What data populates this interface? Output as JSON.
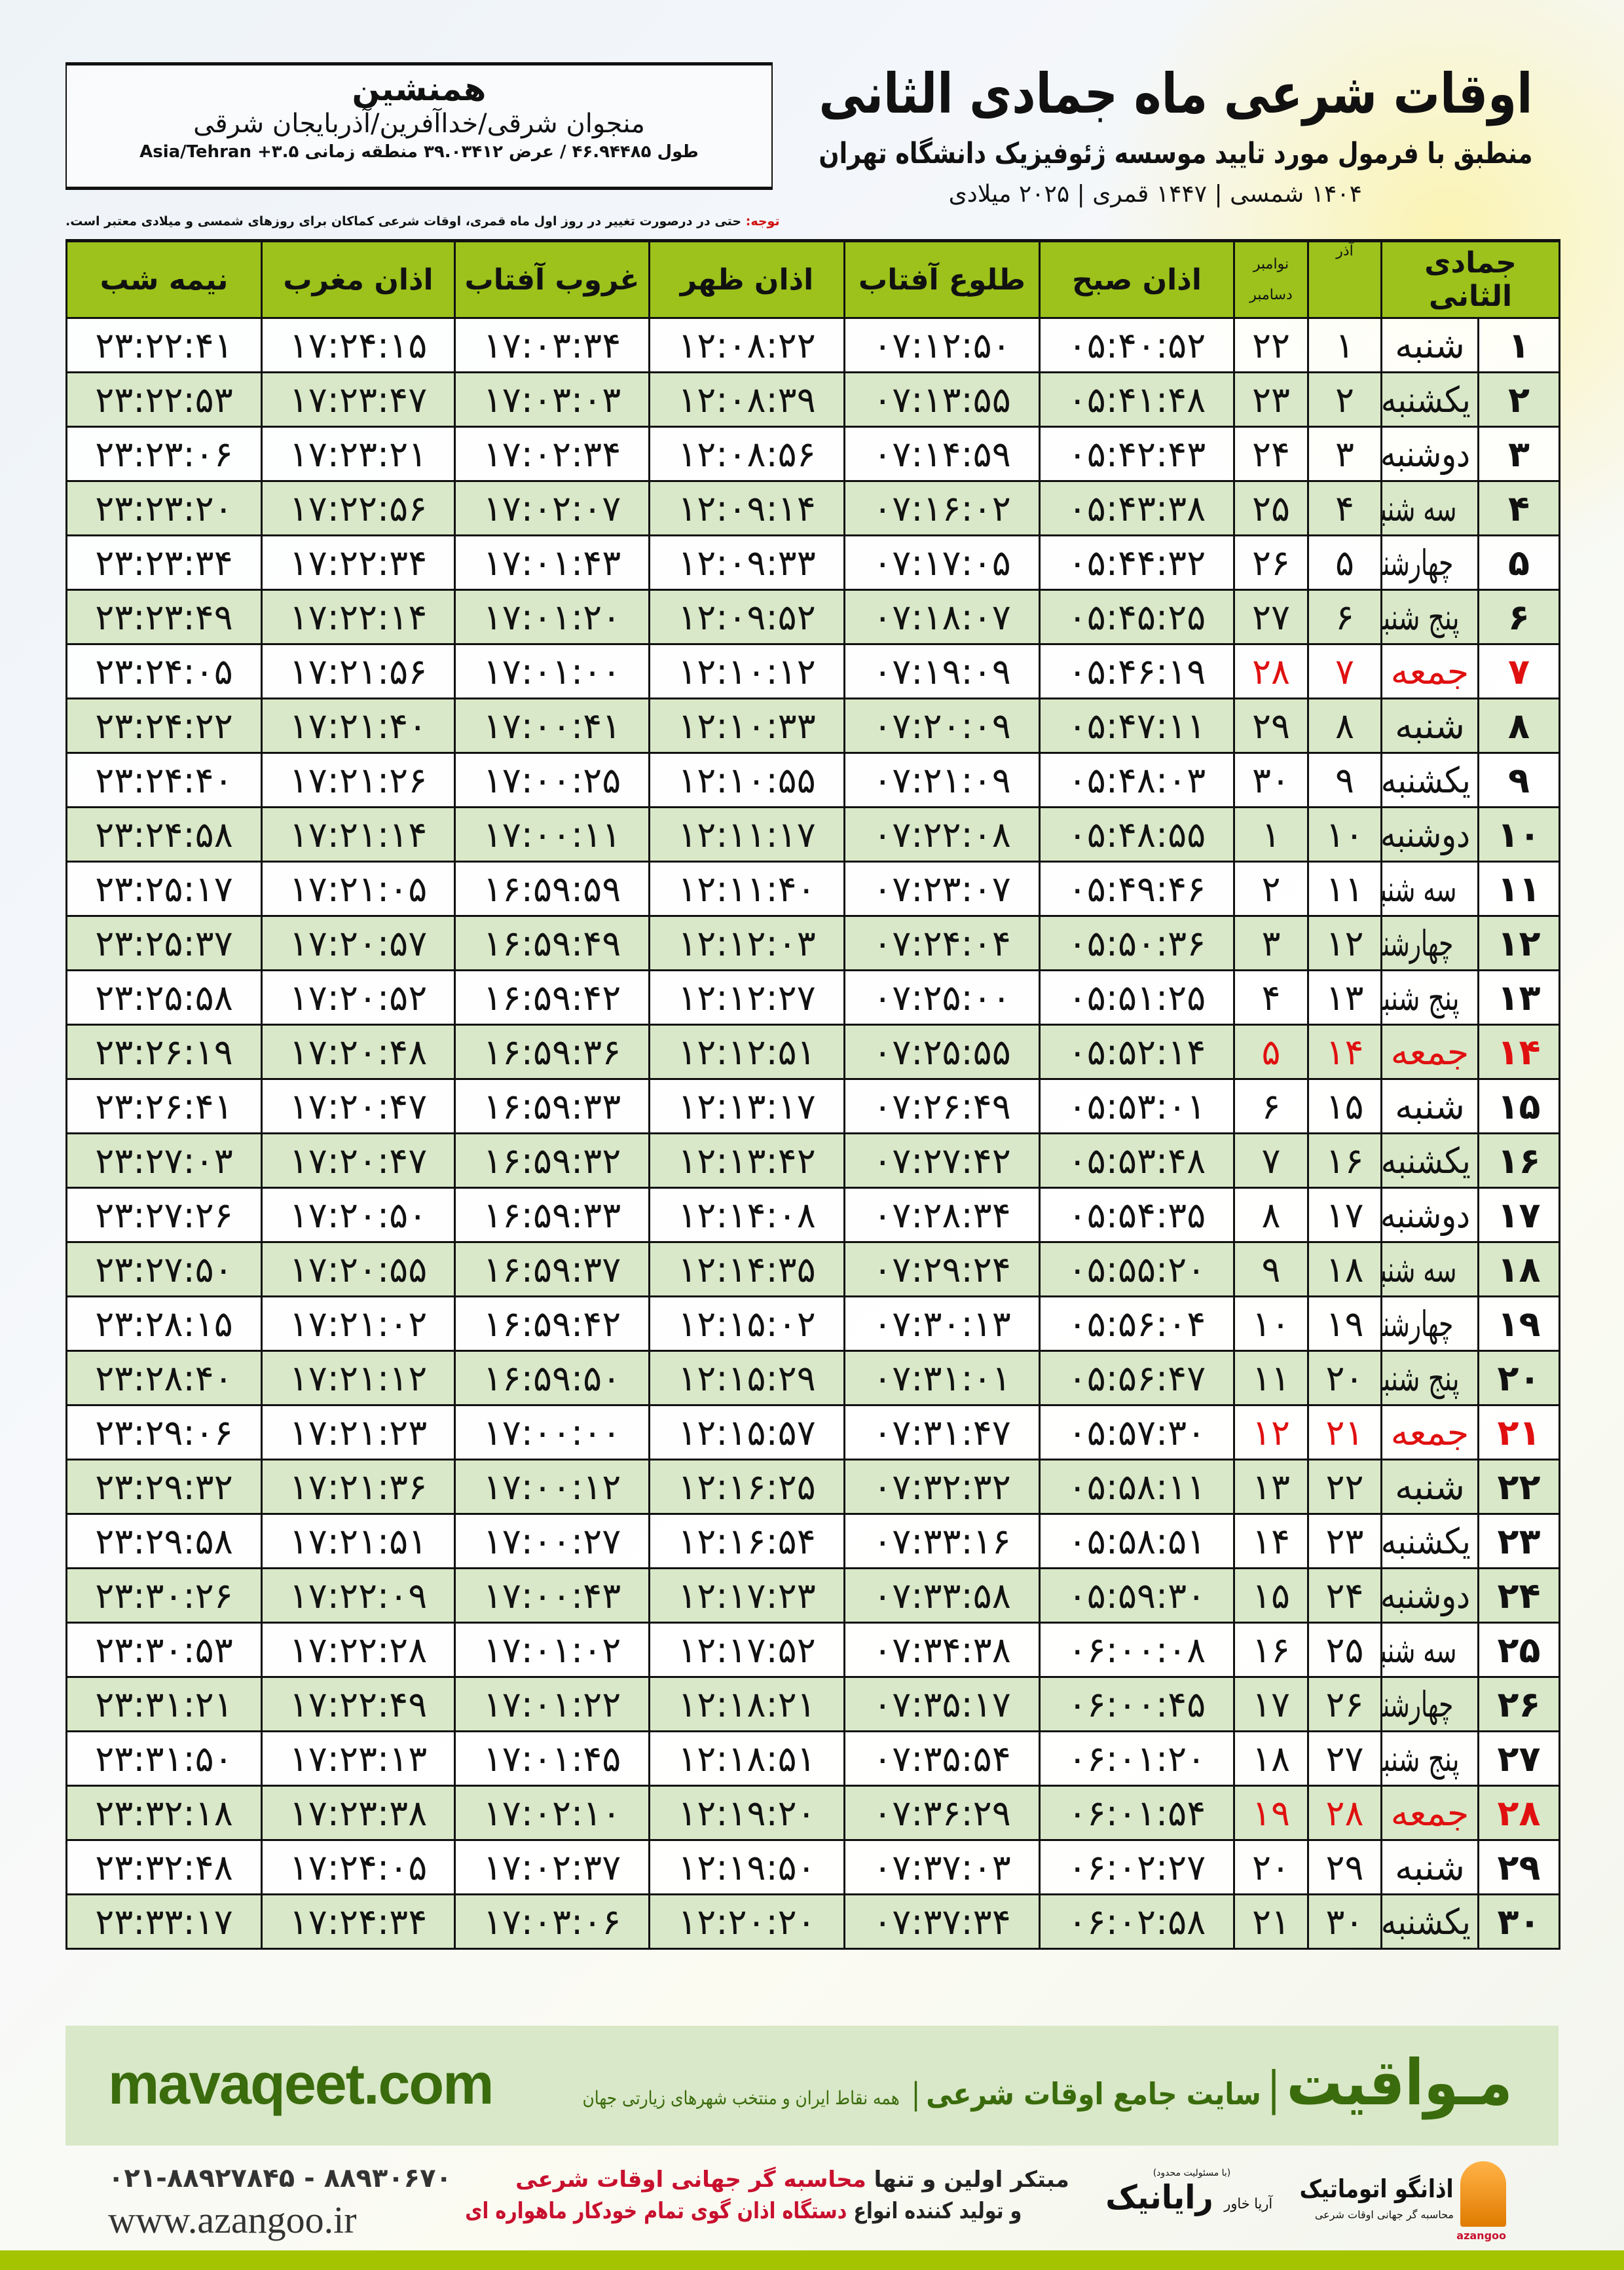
{
  "header": {
    "title": "اوقات شرعی ماه جمادی الثانی",
    "subtitle": "منطبق با فرمول مورد تایید موسسه ژئوفیزیک دانشگاه تهران",
    "years": "۱۴۰۴ شمسی | ۱۴۴۷ قمری | ۲۰۲۵ میلادی"
  },
  "location": {
    "city": "همنشین",
    "region": "منجوان شرقی/خداآفرین/آذربایجان شرقی",
    "coords": "طول ۴۶.۹۴۴۸۵ / عرض ۳۹.۰۳۴۱۲ منطقه زمانی ۳.۵+ Asia/Tehran"
  },
  "note": {
    "label": "توجه:",
    "text": "حتی در درصورت تغییر در روز اول ماه قمری، اوقات شرعی کماکان برای روزهای شمسی و میلادی معتبر است."
  },
  "table": {
    "headers": {
      "hijri": "جمادی الثانی",
      "solar": "آذر",
      "gregorian_top": "نوامبر",
      "gregorian_bottom": "دسامبر",
      "fajr": "اذان صبح",
      "sunrise": "طلوع آفتاب",
      "dhuhr": "اذان ظهر",
      "sunset": "غروب آفتاب",
      "maghrib": "اذان مغرب",
      "midnight": "نیمه شب"
    },
    "friday_color": "#e01010",
    "header_color": "#9cc21b",
    "alt_row_color": "#d9e8c8",
    "rows": [
      [
        "۱",
        "شنبه",
        "۱",
        "۲۲",
        "۰۵:۴۰:۵۲",
        "۰۷:۱۲:۵۰",
        "۱۲:۰۸:۲۲",
        "۱۷:۰۳:۳۴",
        "۱۷:۲۴:۱۵",
        "۲۳:۲۲:۴۱",
        false
      ],
      [
        "۲",
        "یکشنبه",
        "۲",
        "۲۳",
        "۰۵:۴۱:۴۸",
        "۰۷:۱۳:۵۵",
        "۱۲:۰۸:۳۹",
        "۱۷:۰۳:۰۳",
        "۱۷:۲۳:۴۷",
        "۲۳:۲۲:۵۳",
        false
      ],
      [
        "۳",
        "دوشنبه",
        "۳",
        "۲۴",
        "۰۵:۴۲:۴۳",
        "۰۷:۱۴:۵۹",
        "۱۲:۰۸:۵۶",
        "۱۷:۰۲:۳۴",
        "۱۷:۲۳:۲۱",
        "۲۳:۲۳:۰۶",
        false
      ],
      [
        "۴",
        "سه شنبه",
        "۴",
        "۲۵",
        "۰۵:۴۳:۳۸",
        "۰۷:۱۶:۰۲",
        "۱۲:۰۹:۱۴",
        "۱۷:۰۲:۰۷",
        "۱۷:۲۲:۵۶",
        "۲۳:۲۳:۲۰",
        false
      ],
      [
        "۵",
        "چهارشنبه",
        "۵",
        "۲۶",
        "۰۵:۴۴:۳۲",
        "۰۷:۱۷:۰۵",
        "۱۲:۰۹:۳۳",
        "۱۷:۰۱:۴۳",
        "۱۷:۲۲:۳۴",
        "۲۳:۲۳:۳۴",
        false
      ],
      [
        "۶",
        "پنج شنبه",
        "۶",
        "۲۷",
        "۰۵:۴۵:۲۵",
        "۰۷:۱۸:۰۷",
        "۱۲:۰۹:۵۲",
        "۱۷:۰۱:۲۰",
        "۱۷:۲۲:۱۴",
        "۲۳:۲۳:۴۹",
        false
      ],
      [
        "۷",
        "جمعه",
        "۷",
        "۲۸",
        "۰۵:۴۶:۱۹",
        "۰۷:۱۹:۰۹",
        "۱۲:۱۰:۱۲",
        "۱۷:۰۱:۰۰",
        "۱۷:۲۱:۵۶",
        "۲۳:۲۴:۰۵",
        true
      ],
      [
        "۸",
        "شنبه",
        "۸",
        "۲۹",
        "۰۵:۴۷:۱۱",
        "۰۷:۲۰:۰۹",
        "۱۲:۱۰:۳۳",
        "۱۷:۰۰:۴۱",
        "۱۷:۲۱:۴۰",
        "۲۳:۲۴:۲۲",
        false
      ],
      [
        "۹",
        "یکشنبه",
        "۹",
        "۳۰",
        "۰۵:۴۸:۰۳",
        "۰۷:۲۱:۰۹",
        "۱۲:۱۰:۵۵",
        "۱۷:۰۰:۲۵",
        "۱۷:۲۱:۲۶",
        "۲۳:۲۴:۴۰",
        false
      ],
      [
        "۱۰",
        "دوشنبه",
        "۱۰",
        "۱",
        "۰۵:۴۸:۵۵",
        "۰۷:۲۲:۰۸",
        "۱۲:۱۱:۱۷",
        "۱۷:۰۰:۱۱",
        "۱۷:۲۱:۱۴",
        "۲۳:۲۴:۵۸",
        false
      ],
      [
        "۱۱",
        "سه شنبه",
        "۱۱",
        "۲",
        "۰۵:۴۹:۴۶",
        "۰۷:۲۳:۰۷",
        "۱۲:۱۱:۴۰",
        "۱۶:۵۹:۵۹",
        "۱۷:۲۱:۰۵",
        "۲۳:۲۵:۱۷",
        false
      ],
      [
        "۱۲",
        "چهارشنبه",
        "۱۲",
        "۳",
        "۰۵:۵۰:۳۶",
        "۰۷:۲۴:۰۴",
        "۱۲:۱۲:۰۳",
        "۱۶:۵۹:۴۹",
        "۱۷:۲۰:۵۷",
        "۲۳:۲۵:۳۷",
        false
      ],
      [
        "۱۳",
        "پنج شنبه",
        "۱۳",
        "۴",
        "۰۵:۵۱:۲۵",
        "۰۷:۲۵:۰۰",
        "۱۲:۱۲:۲۷",
        "۱۶:۵۹:۴۲",
        "۱۷:۲۰:۵۲",
        "۲۳:۲۵:۵۸",
        false
      ],
      [
        "۱۴",
        "جمعه",
        "۱۴",
        "۵",
        "۰۵:۵۲:۱۴",
        "۰۷:۲۵:۵۵",
        "۱۲:۱۲:۵۱",
        "۱۶:۵۹:۳۶",
        "۱۷:۲۰:۴۸",
        "۲۳:۲۶:۱۹",
        true
      ],
      [
        "۱۵",
        "شنبه",
        "۱۵",
        "۶",
        "۰۵:۵۳:۰۱",
        "۰۷:۲۶:۴۹",
        "۱۲:۱۳:۱۷",
        "۱۶:۵۹:۳۳",
        "۱۷:۲۰:۴۷",
        "۲۳:۲۶:۴۱",
        false
      ],
      [
        "۱۶",
        "یکشنبه",
        "۱۶",
        "۷",
        "۰۵:۵۳:۴۸",
        "۰۷:۲۷:۴۲",
        "۱۲:۱۳:۴۲",
        "۱۶:۵۹:۳۲",
        "۱۷:۲۰:۴۷",
        "۲۳:۲۷:۰۳",
        false
      ],
      [
        "۱۷",
        "دوشنبه",
        "۱۷",
        "۸",
        "۰۵:۵۴:۳۵",
        "۰۷:۲۸:۳۴",
        "۱۲:۱۴:۰۸",
        "۱۶:۵۹:۳۳",
        "۱۷:۲۰:۵۰",
        "۲۳:۲۷:۲۶",
        false
      ],
      [
        "۱۸",
        "سه شنبه",
        "۱۸",
        "۹",
        "۰۵:۵۵:۲۰",
        "۰۷:۲۹:۲۴",
        "۱۲:۱۴:۳۵",
        "۱۶:۵۹:۳۷",
        "۱۷:۲۰:۵۵",
        "۲۳:۲۷:۵۰",
        false
      ],
      [
        "۱۹",
        "چهارشنبه",
        "۱۹",
        "۱۰",
        "۰۵:۵۶:۰۴",
        "۰۷:۳۰:۱۳",
        "۱۲:۱۵:۰۲",
        "۱۶:۵۹:۴۲",
        "۱۷:۲۱:۰۲",
        "۲۳:۲۸:۱۵",
        false
      ],
      [
        "۲۰",
        "پنج شنبه",
        "۲۰",
        "۱۱",
        "۰۵:۵۶:۴۷",
        "۰۷:۳۱:۰۱",
        "۱۲:۱۵:۲۹",
        "۱۶:۵۹:۵۰",
        "۱۷:۲۱:۱۲",
        "۲۳:۲۸:۴۰",
        false
      ],
      [
        "۲۱",
        "جمعه",
        "۲۱",
        "۱۲",
        "۰۵:۵۷:۳۰",
        "۰۷:۳۱:۴۷",
        "۱۲:۱۵:۵۷",
        "۱۷:۰۰:۰۰",
        "۱۷:۲۱:۲۳",
        "۲۳:۲۹:۰۶",
        true
      ],
      [
        "۲۲",
        "شنبه",
        "۲۲",
        "۱۳",
        "۰۵:۵۸:۱۱",
        "۰۷:۳۲:۳۲",
        "۱۲:۱۶:۲۵",
        "۱۷:۰۰:۱۲",
        "۱۷:۲۱:۳۶",
        "۲۳:۲۹:۳۲",
        false
      ],
      [
        "۲۳",
        "یکشنبه",
        "۲۳",
        "۱۴",
        "۰۵:۵۸:۵۱",
        "۰۷:۳۳:۱۶",
        "۱۲:۱۶:۵۴",
        "۱۷:۰۰:۲۷",
        "۱۷:۲۱:۵۱",
        "۲۳:۲۹:۵۸",
        false
      ],
      [
        "۲۴",
        "دوشنبه",
        "۲۴",
        "۱۵",
        "۰۵:۵۹:۳۰",
        "۰۷:۳۳:۵۸",
        "۱۲:۱۷:۲۳",
        "۱۷:۰۰:۴۳",
        "۱۷:۲۲:۰۹",
        "۲۳:۳۰:۲۶",
        false
      ],
      [
        "۲۵",
        "سه شنبه",
        "۲۵",
        "۱۶",
        "۰۶:۰۰:۰۸",
        "۰۷:۳۴:۳۸",
        "۱۲:۱۷:۵۲",
        "۱۷:۰۱:۰۲",
        "۱۷:۲۲:۲۸",
        "۲۳:۳۰:۵۳",
        false
      ],
      [
        "۲۶",
        "چهارشنبه",
        "۲۶",
        "۱۷",
        "۰۶:۰۰:۴۵",
        "۰۷:۳۵:۱۷",
        "۱۲:۱۸:۲۱",
        "۱۷:۰۱:۲۲",
        "۱۷:۲۲:۴۹",
        "۲۳:۳۱:۲۱",
        false
      ],
      [
        "۲۷",
        "پنج شنبه",
        "۲۷",
        "۱۸",
        "۰۶:۰۱:۲۰",
        "۰۷:۳۵:۵۴",
        "۱۲:۱۸:۵۱",
        "۱۷:۰۱:۴۵",
        "۱۷:۲۳:۱۳",
        "۲۳:۳۱:۵۰",
        false
      ],
      [
        "۲۸",
        "جمعه",
        "۲۸",
        "۱۹",
        "۰۶:۰۱:۵۴",
        "۰۷:۳۶:۲۹",
        "۱۲:۱۹:۲۰",
        "۱۷:۰۲:۱۰",
        "۱۷:۲۳:۳۸",
        "۲۳:۳۲:۱۸",
        true
      ],
      [
        "۲۹",
        "شنبه",
        "۲۹",
        "۲۰",
        "۰۶:۰۲:۲۷",
        "۰۷:۳۷:۰۳",
        "۱۲:۱۹:۵۰",
        "۱۷:۰۲:۳۷",
        "۱۷:۲۴:۰۵",
        "۲۳:۳۲:۴۸",
        false
      ],
      [
        "۳۰",
        "یکشنبه",
        "۳۰",
        "۲۱",
        "۰۶:۰۲:۵۸",
        "۰۷:۳۷:۳۴",
        "۱۲:۲۰:۲۰",
        "۱۷:۰۳:۰۶",
        "۱۷:۲۴:۳۴",
        "۲۳:۳۳:۱۷",
        false
      ]
    ]
  },
  "footer": {
    "site": "mavaqeet.com",
    "brand": "مـواقیت",
    "brand_sep": "|",
    "brand_tagline": "سایت جامع اوقات شرعی",
    "brand_sub": "همه نقاط ایران و منتخب شهرهای زیارتی جهان",
    "phones": "۰۲۱-۸۸۹۲۷۸۴۵ - ۸۸۹۳۰۶۷۰",
    "website": "www.azangoo.ir",
    "slogan_1a": "مبتکر اولین و تنها ",
    "slogan_1b": "محاسبه گر جهانی اوقات شرعی",
    "slogan_2a": "و تولید کننده انواع ",
    "slogan_2b": "دستگاه اذان گوی تمام خودکار ماهواره ای",
    "logo_rayanik_note": "(با مسئولیت محدود)",
    "logo_rayanik_a": "آریا خاور",
    "logo_rayanik_b": "رایانیک",
    "logo_azangoo": "اذانگو اتوماتیک",
    "logo_azangoo_sub": "محاسبه گر جهانی اوقات شرعی",
    "logo_azangoo_en": "azangoo",
    "accent_color": "#3a6b0c",
    "band_color": "#d9e8c8",
    "strip_color": "#a4c400"
  }
}
